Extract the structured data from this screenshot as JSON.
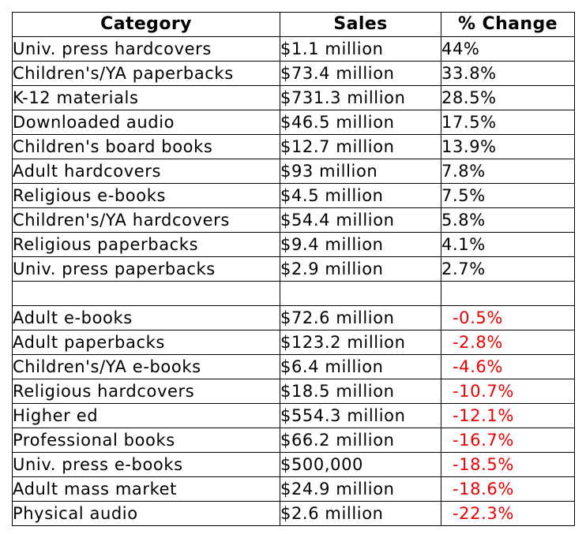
{
  "colors": {
    "positive": "#000000",
    "negative": "#ee0000",
    "border": "#000000",
    "background": "#ffffff"
  },
  "chart_data": {
    "type": "table",
    "columns": [
      "Category",
      "Sales",
      "% Change"
    ],
    "rows": [
      {
        "category": "Univ. press hardcovers",
        "sales": "$1.1 million",
        "change": "44%",
        "change_value": 44.0
      },
      {
        "category": "Children's/YA paperbacks",
        "sales": "$73.4 million",
        "change": "33.8%",
        "change_value": 33.8
      },
      {
        "category": "K-12 materials",
        "sales": "$731.3 million",
        "change": "28.5%",
        "change_value": 28.5
      },
      {
        "category": "Downloaded audio",
        "sales": "$46.5 million",
        "change": "17.5%",
        "change_value": 17.5
      },
      {
        "category": "Children's board books",
        "sales": "$12.7 million",
        "change": "13.9%",
        "change_value": 13.9
      },
      {
        "category": "Adult hardcovers",
        "sales": "$93 million",
        "change": "7.8%",
        "change_value": 7.8
      },
      {
        "category": "Religious e-books",
        "sales": "$4.5 million",
        "change": "7.5%",
        "change_value": 7.5
      },
      {
        "category": "Children's/YA hardcovers",
        "sales": "$54.4 million",
        "change": "5.8%",
        "change_value": 5.8
      },
      {
        "category": "Religious paperbacks",
        "sales": "$9.4 million",
        "change": "4.1%",
        "change_value": 4.1
      },
      {
        "category": "Univ. press paperbacks",
        "sales": "$2.9 million",
        "change": "2.7%",
        "change_value": 2.7
      },
      {
        "category": "",
        "sales": "",
        "change": "",
        "change_value": null
      },
      {
        "category": "Adult e-books",
        "sales": "$72.6 million",
        "change": "-0.5%",
        "change_value": -0.5
      },
      {
        "category": "Adult paperbacks",
        "sales": "$123.2 million",
        "change": "-2.8%",
        "change_value": -2.8
      },
      {
        "category": "Children's/YA e-books",
        "sales": "$6.4 million",
        "change": "-4.6%",
        "change_value": -4.6
      },
      {
        "category": "Religious hardcovers",
        "sales": "$18.5 million",
        "change": "-10.7%",
        "change_value": -10.7
      },
      {
        "category": "Higher ed",
        "sales": "$554.3 million",
        "change": "-12.1%",
        "change_value": -12.1
      },
      {
        "category": "Professional books",
        "sales": "$66.2 million",
        "change": "-16.7%",
        "change_value": -16.7
      },
      {
        "category": "Univ. press e-books",
        "sales": "$500,000",
        "change": "-18.5%",
        "change_value": -18.5
      },
      {
        "category": "Adult mass market",
        "sales": "$24.9 million",
        "change": "-18.6%",
        "change_value": -18.6
      },
      {
        "category": "Physical audio",
        "sales": "$2.6 million",
        "change": "-22.3%",
        "change_value": -22.3
      }
    ]
  }
}
